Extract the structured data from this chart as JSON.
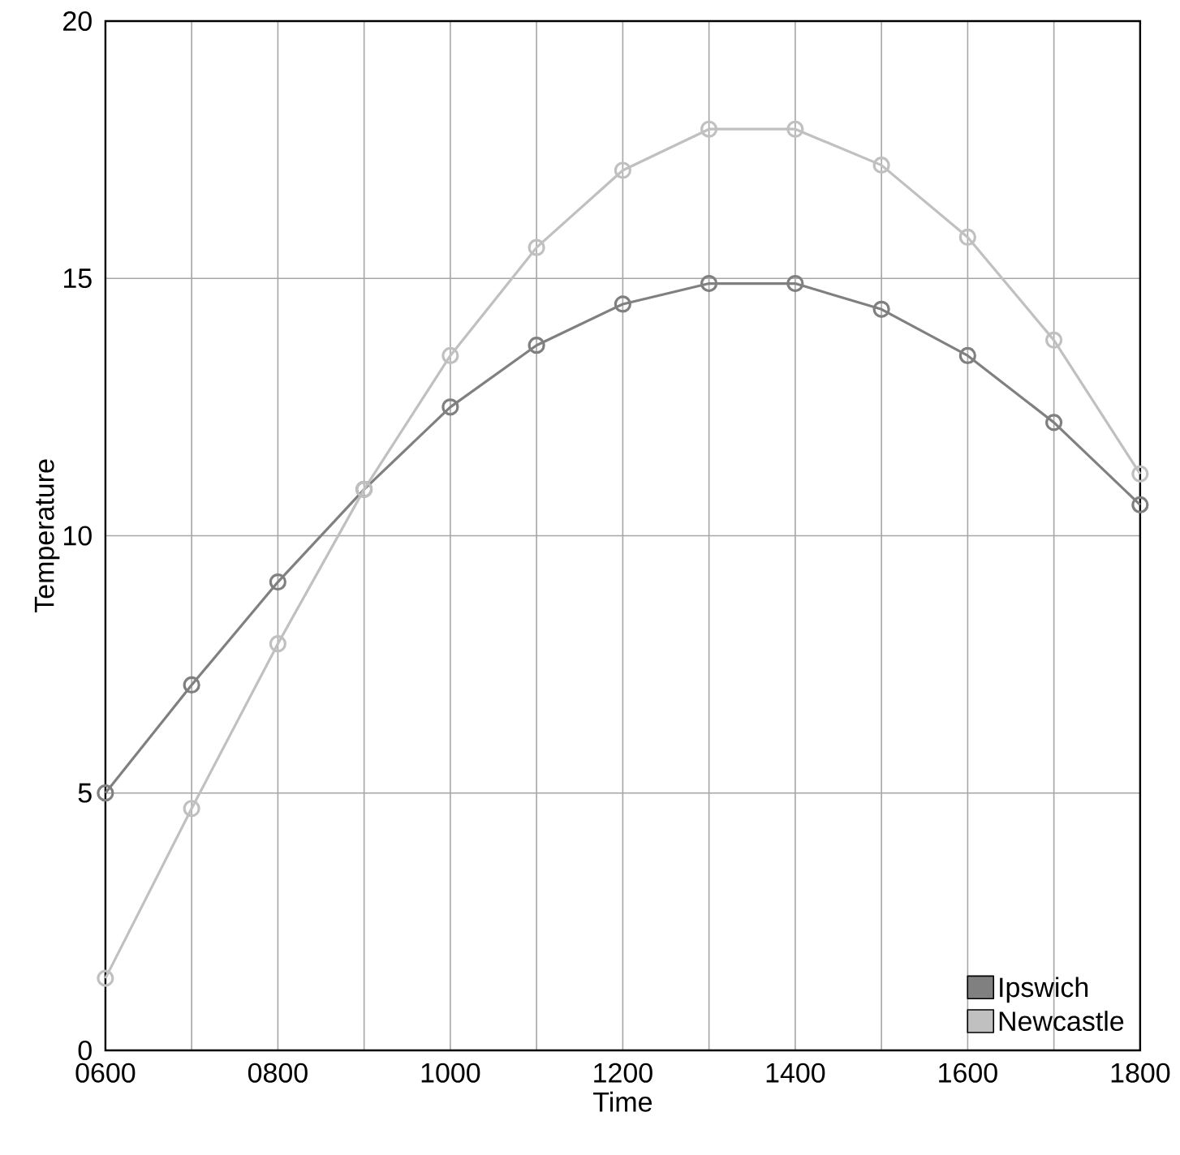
{
  "chart_data": {
    "type": "line",
    "xlabel": "Time",
    "ylabel": "Temperature",
    "categories": [
      "0600",
      null,
      "0800",
      null,
      "1000",
      null,
      "1200",
      null,
      "1400",
      null,
      "1600",
      null,
      "1800"
    ],
    "series": [
      {
        "name": "Ipswich",
        "color": "#808080",
        "values": [
          5.0,
          7.1,
          9.1,
          10.9,
          12.5,
          13.7,
          14.5,
          14.9,
          14.9,
          14.4,
          13.5,
          12.2,
          10.6
        ]
      },
      {
        "name": "Newcastle",
        "color": "#c0c0c0",
        "values": [
          1.4,
          4.7,
          7.9,
          10.9,
          13.5,
          15.6,
          17.1,
          17.9,
          17.9,
          17.2,
          15.8,
          13.8,
          11.2
        ]
      }
    ],
    "ylim": [
      0,
      20
    ],
    "yticks": [
      0,
      5,
      10,
      15,
      20
    ],
    "grid": true,
    "legend": "bottom right",
    "marker": "circle",
    "line_style": "solid"
  }
}
